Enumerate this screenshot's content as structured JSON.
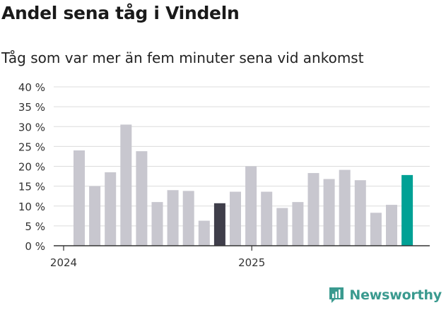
{
  "title": "Andel sena tåg i Vindeln",
  "subtitle": "Tåg som var mer än fem minuter sena vid ankomst",
  "brand": "Newsworthy",
  "colors": {
    "bar": "#c8c7cf",
    "highlight_dark": "#3f3e4a",
    "highlight_current": "#00a195",
    "brand": "#3a9a8f",
    "grid": "#dcdcdc"
  },
  "chart_data": {
    "type": "bar",
    "xlabel": "",
    "ylabel": "",
    "ylim": [
      0,
      40
    ],
    "yticks": [
      "0 %",
      "5 %",
      "10 %",
      "15 %",
      "20 %",
      "25 %",
      "30 %",
      "35 %",
      "40 %"
    ],
    "year_labels": [
      {
        "label": "2024",
        "index": 0
      },
      {
        "label": "2025",
        "index": 12
      }
    ],
    "grid": true,
    "values": [
      24,
      15,
      18.5,
      30.5,
      23.8,
      11,
      14,
      13.8,
      6.3,
      10.7,
      13.6,
      20,
      13.6,
      9.5,
      11,
      18.3,
      16.8,
      19.1,
      16.5,
      8.3,
      10.3,
      17.8
    ],
    "highlights": {
      "9": "highlight_dark",
      "21": "highlight_current"
    }
  }
}
